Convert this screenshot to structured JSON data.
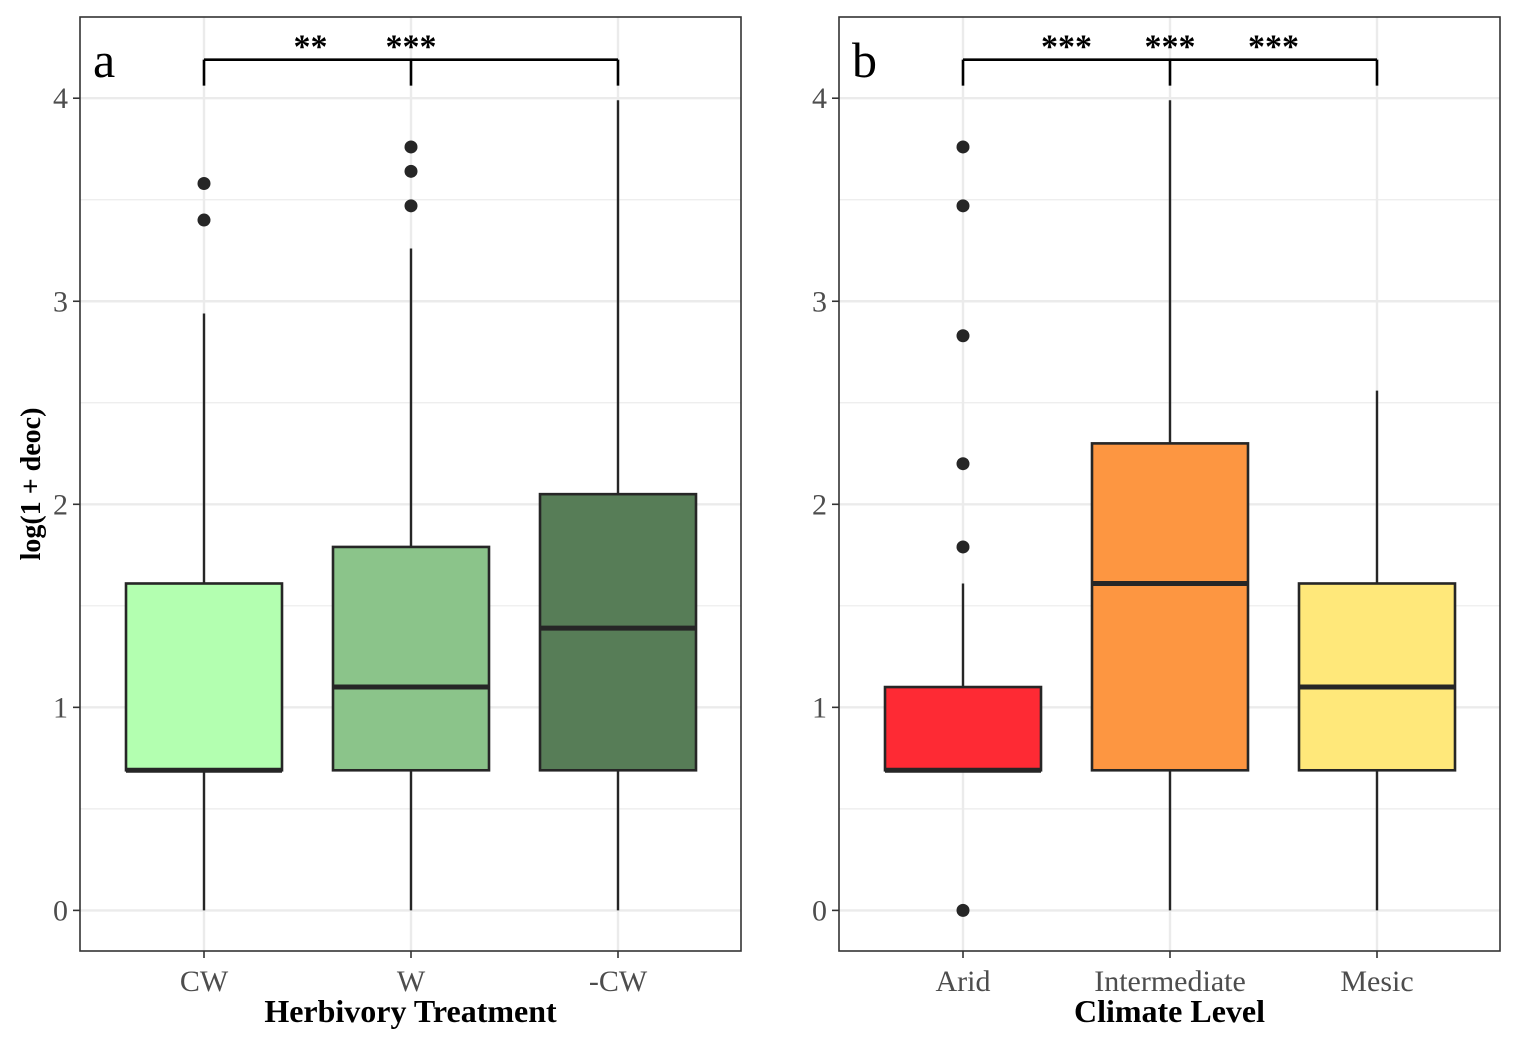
{
  "chart_data": [
    {
      "type": "box",
      "panel_tag": "a",
      "xlabel": "Herbivory Treatment",
      "ylabel": "log(1 + deoc)",
      "ylim": [
        -0.2,
        4.4
      ],
      "yticks": [
        0,
        1,
        2,
        3,
        4
      ],
      "grid": true,
      "categories": [
        "CW",
        "W",
        "-CW"
      ],
      "colors": [
        "#b3ffb0",
        "#8bc48a",
        "#577d57"
      ],
      "boxes": [
        {
          "category": "CW",
          "whisker_low": 0,
          "q1": 0.69,
          "median": 0.69,
          "q3": 1.61,
          "whisker_high": 2.94,
          "outliers": [
            3.4,
            3.58
          ]
        },
        {
          "category": "W",
          "whisker_low": 0,
          "q1": 0.69,
          "median": 1.1,
          "q3": 1.79,
          "whisker_high": 3.26,
          "outliers": [
            3.47,
            3.64,
            3.76
          ]
        },
        {
          "category": "-CW",
          "whisker_low": 0,
          "q1": 0.69,
          "median": 1.39,
          "q3": 2.05,
          "whisker_high": 3.99,
          "outliers": []
        }
      ],
      "significance": {
        "bracket_y": 4.19,
        "labels": [
          {
            "text": "**",
            "between": [
              "CW",
              "W"
            ]
          },
          {
            "text": "***",
            "between": [
              "W",
              "-CW"
            ]
          }
        ]
      }
    },
    {
      "type": "box",
      "panel_tag": "b",
      "xlabel": "Climate Level",
      "ylabel": "",
      "ylim": [
        -0.2,
        4.4
      ],
      "yticks": [
        0,
        1,
        2,
        3,
        4
      ],
      "grid": true,
      "categories": [
        "Arid",
        "Intermediate",
        "Mesic"
      ],
      "colors": [
        "#fe2a34",
        "#fd9641",
        "#ffe87a"
      ],
      "boxes": [
        {
          "category": "Arid",
          "whisker_low": 0.69,
          "q1": 0.69,
          "median": 0.69,
          "q3": 1.1,
          "whisker_high": 1.61,
          "outliers": [
            0,
            1.79,
            2.2,
            2.83,
            3.47,
            3.76
          ]
        },
        {
          "category": "Intermediate",
          "whisker_low": 0,
          "q1": 0.69,
          "median": 1.61,
          "q3": 2.3,
          "whisker_high": 3.99,
          "outliers": []
        },
        {
          "category": "Mesic",
          "whisker_low": 0,
          "q1": 0.69,
          "median": 1.1,
          "q3": 1.61,
          "whisker_high": 2.56,
          "outliers": []
        }
      ],
      "significance": {
        "bracket_y": 4.19,
        "labels": [
          {
            "text": "***",
            "between": [
              "Arid",
              "Intermediate"
            ]
          },
          {
            "text": "***",
            "between": [
              "Intermediate",
              "Intermediate"
            ]
          },
          {
            "text": "***",
            "between": [
              "Intermediate",
              "Mesic"
            ]
          }
        ]
      }
    }
  ]
}
